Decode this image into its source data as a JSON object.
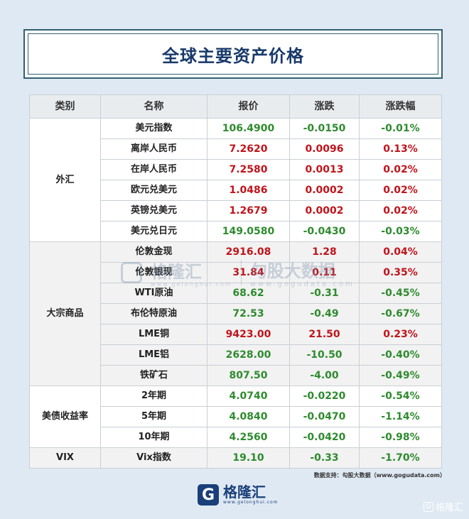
{
  "title": "全球主要资产价格",
  "columns": [
    "类别",
    "名称",
    "报价",
    "涨跌",
    "涨跌幅"
  ],
  "colors": {
    "up": "#c0141b",
    "down": "#2e8b2e",
    "title": "#17396b"
  },
  "groups": [
    {
      "category": "外汇",
      "rows": [
        {
          "name": "美元指数",
          "price": "106.4900",
          "change": "-0.0150",
          "pct": "-0.01%",
          "trend": "down"
        },
        {
          "name": "离岸人民币",
          "price": "7.2620",
          "change": "0.0096",
          "pct": "0.13%",
          "trend": "up"
        },
        {
          "name": "在岸人民币",
          "price": "7.2580",
          "change": "0.0013",
          "pct": "0.02%",
          "trend": "up"
        },
        {
          "name": "欧元兑美元",
          "price": "1.0486",
          "change": "0.0002",
          "pct": "0.02%",
          "trend": "up"
        },
        {
          "name": "英镑兑美元",
          "price": "1.2679",
          "change": "0.0002",
          "pct": "0.02%",
          "trend": "up"
        },
        {
          "name": "美元兑日元",
          "price": "149.0580",
          "change": "-0.0430",
          "pct": "-0.03%",
          "trend": "down"
        }
      ]
    },
    {
      "category": "大宗商品",
      "rows": [
        {
          "name": "伦敦金现",
          "price": "2916.08",
          "change": "1.28",
          "pct": "0.04%",
          "trend": "up"
        },
        {
          "name": "伦敦银现",
          "price": "31.84",
          "change": "0.11",
          "pct": "0.35%",
          "trend": "up"
        },
        {
          "name": "WTI原油",
          "price": "68.62",
          "change": "-0.31",
          "pct": "-0.45%",
          "trend": "down"
        },
        {
          "name": "布伦特原油",
          "price": "72.53",
          "change": "-0.49",
          "pct": "-0.67%",
          "trend": "down"
        },
        {
          "name": "LME铜",
          "price": "9423.00",
          "change": "21.50",
          "pct": "0.23%",
          "trend": "up"
        },
        {
          "name": "LME铝",
          "price": "2628.00",
          "change": "-10.50",
          "pct": "-0.40%",
          "trend": "down"
        },
        {
          "name": "铁矿石",
          "price": "807.50",
          "change": "-4.00",
          "pct": "-0.49%",
          "trend": "down"
        }
      ]
    },
    {
      "category": "美债收益率",
      "rows": [
        {
          "name": "2年期",
          "price": "4.0740",
          "change": "-0.0220",
          "pct": "-0.54%",
          "trend": "down"
        },
        {
          "name": "5年期",
          "price": "4.0840",
          "change": "-0.0470",
          "pct": "-1.14%",
          "trend": "down"
        },
        {
          "name": "10年期",
          "price": "4.2560",
          "change": "-0.0420",
          "pct": "-0.98%",
          "trend": "down"
        }
      ]
    },
    {
      "category": "VIX",
      "rows": [
        {
          "name": "Vix指数",
          "price": "19.10",
          "change": "-0.33",
          "pct": "-1.70%",
          "trend": "down"
        }
      ]
    }
  ],
  "source_note": "数据支持：勾股大数据（www.gogudata.com）",
  "watermark": {
    "brand": "格隆汇",
    "brand_url": "www.gelonghui.com",
    "data_brand": "勾股大数据",
    "data_url": "www.gogudata.com"
  },
  "footer": {
    "brand": "格隆汇",
    "url": "www.gelonghui.com",
    "logo_letter": "G"
  },
  "corner_mark": "格隆汇"
}
